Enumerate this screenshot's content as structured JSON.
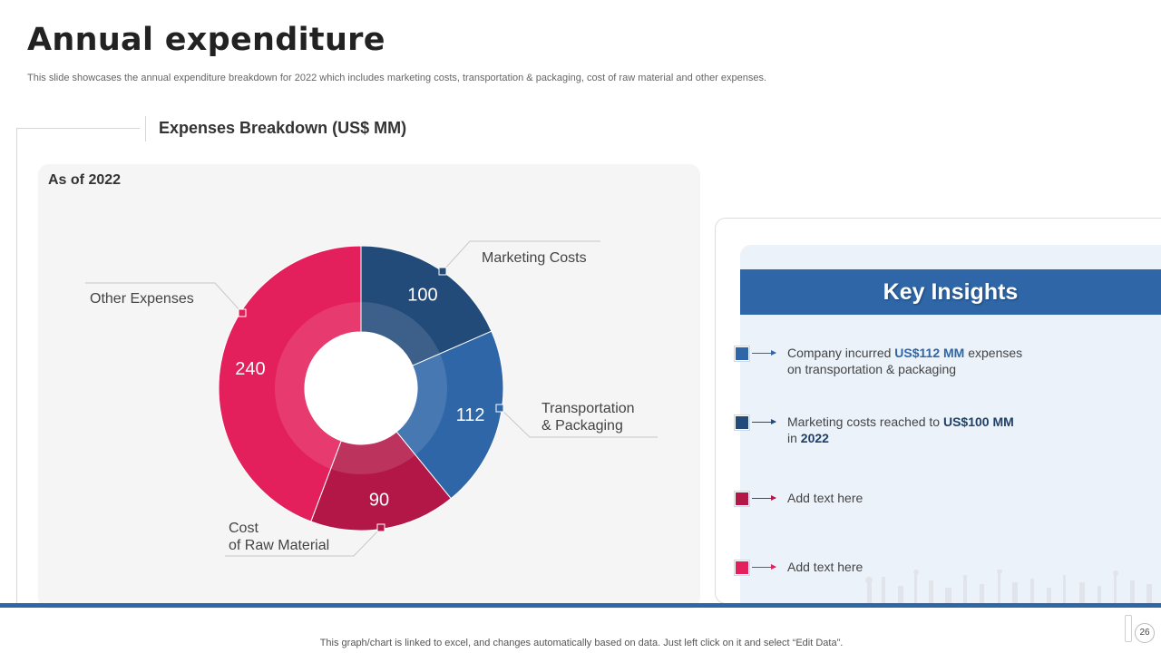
{
  "page": {
    "title": "Annual expenditure",
    "subtitle": "This slide showcases the annual expenditure breakdown for 2022 which includes marketing costs, transportation & packaging, cost of raw material and other expenses.",
    "section_title": "Expenses Breakdown (US$ MM)",
    "as_of": "As of 2022",
    "footer": "This graph/chart is linked to excel,  and changes automatically based on data. Just left click on it and select “Edit Data”.",
    "page_number": "26"
  },
  "chart_data": {
    "type": "pie",
    "title": "Expenses Breakdown (US$ MM)",
    "subtitle": "As of 2022",
    "categories": [
      "Marketing Costs",
      "Transportation & Packaging",
      "Cost of Raw Material",
      "Other Expenses"
    ],
    "values": [
      100,
      112,
      90,
      240
    ],
    "colors": [
      "#234b7a",
      "#2e66a8",
      "#b31747",
      "#e4205c"
    ],
    "label_lines": [
      [
        "Marketing Costs"
      ],
      [
        "Transportation",
        "& Packaging"
      ],
      [
        "Cost",
        "of Raw Material"
      ],
      [
        "Other Expenses"
      ]
    ],
    "donut": true
  },
  "insights": {
    "header": "Key Insights",
    "items": [
      {
        "color": "#2e66a8",
        "arrow_color": "#2e66a8",
        "pre": "Company incurred ",
        "bold": "US$112 MM",
        "post": " expenses",
        "line2_pre": "on transportation & packaging",
        "line2_bold": ""
      },
      {
        "color": "#234b7a",
        "arrow_color": "#234b7a",
        "pre": "Marketing  costs reached to ",
        "bold": "US$100 MM",
        "post": "",
        "line2_pre": "in ",
        "line2_bold": "2022"
      },
      {
        "color": "#b31747",
        "arrow_color": "#b31747",
        "pre": "Add text here",
        "bold": "",
        "post": "",
        "line2_pre": "",
        "line2_bold": ""
      },
      {
        "color": "#e4205c",
        "arrow_color": "#e4205c",
        "pre": "Add text here",
        "bold": "",
        "post": "",
        "line2_pre": "",
        "line2_bold": ""
      }
    ]
  }
}
